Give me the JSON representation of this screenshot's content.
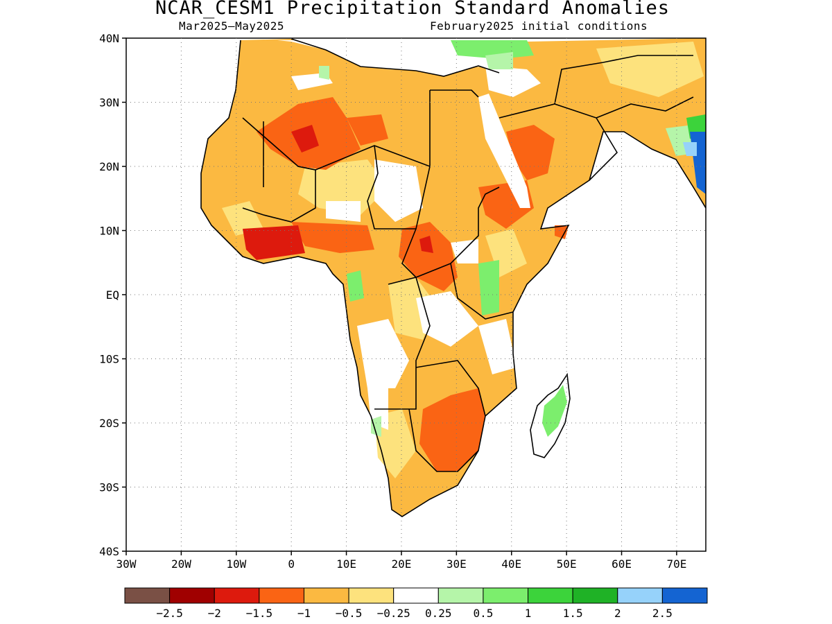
{
  "title": "NCAR_CESM1 Precipitation Standard Anomalies",
  "subtitle_left": "Mar2025–May2025",
  "subtitle_right": "February2025 initial conditions",
  "lat_labels": [
    "40N",
    "30N",
    "20N",
    "10N",
    "EQ",
    "10S",
    "20S",
    "30S",
    "40S"
  ],
  "lon_labels": [
    "30W",
    "20W",
    "10W",
    "0",
    "10E",
    "20E",
    "30E",
    "40E",
    "50E",
    "60E",
    "70E"
  ],
  "colorbar": {
    "labels": [
      "−2.5",
      "−2",
      "−1.5",
      "−1",
      "−0.5",
      "−0.25",
      "0.25",
      "0.5",
      "1",
      "1.5",
      "2",
      "2.5"
    ],
    "colors": [
      "#7a5045",
      "#a00000",
      "#dd1a0d",
      "#fa6414",
      "#fbb941",
      "#fde27d",
      "#ffffff",
      "#b5f5a9",
      "#7cee6d",
      "#3cd33b",
      "#1fb226",
      "#96d2fa",
      "#1464d2"
    ]
  },
  "colors": {
    "ocean": "#ffffff",
    "dry_moderate": "#fbb941",
    "dry_light": "#fde27d",
    "dry_strong": "#fa6414",
    "dry_severe": "#dd1a0d",
    "wet_light": "#b5f5a9",
    "wet_moderate": "#7cee6d",
    "wet_strong": "#3cd33b",
    "wet_very": "#1464d2"
  }
}
